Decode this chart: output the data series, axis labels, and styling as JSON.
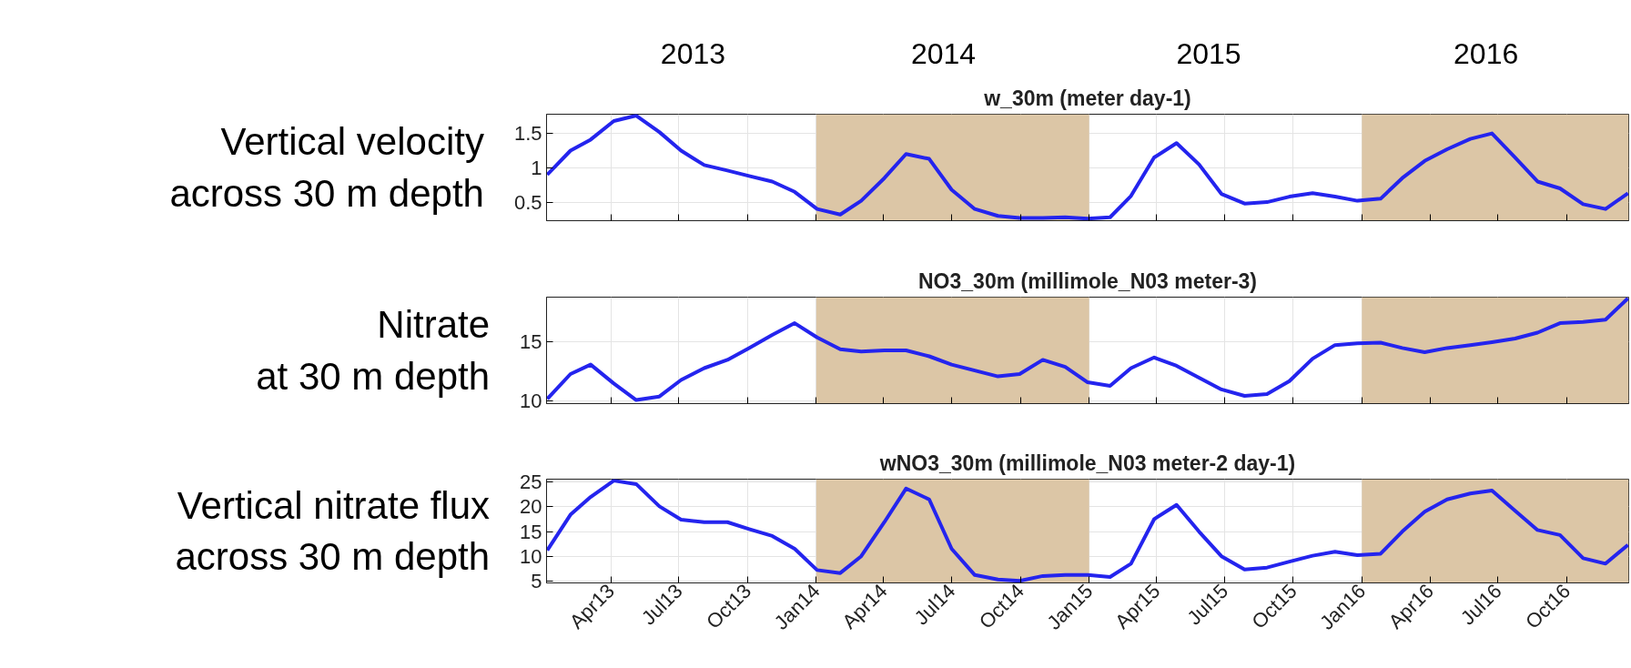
{
  "chart_data": [
    {
      "type": "line",
      "title": "w_30m (meter day-1)",
      "ylabel": "Vertical velocity\nacross 30 m depth",
      "x": [
        "2013-01-06",
        "2013-02-06",
        "2013-03-05",
        "2013-04-05",
        "2013-05-05",
        "2013-06-05",
        "2013-07-04",
        "2013-08-04",
        "2013-09-04",
        "2013-10-03",
        "2013-11-03",
        "2013-12-03",
        "2014-01-02",
        "2014-02-02",
        "2014-03-02",
        "2014-04-02",
        "2014-05-01",
        "2014-06-01",
        "2014-07-01",
        "2014-08-01",
        "2014-09-01",
        "2014-09-30",
        "2014-10-31",
        "2014-11-30",
        "2014-12-30",
        "2015-01-29",
        "2015-02-26",
        "2015-03-29",
        "2015-04-28",
        "2015-05-28",
        "2015-06-27",
        "2015-07-28",
        "2015-08-27",
        "2015-09-26",
        "2015-10-27",
        "2015-11-26",
        "2015-12-26",
        "2016-01-26",
        "2016-02-24",
        "2016-03-25",
        "2016-04-24",
        "2016-05-25",
        "2016-06-23",
        "2016-07-24",
        "2016-08-23",
        "2016-09-22",
        "2016-10-23",
        "2016-11-22",
        "2016-12-22"
      ],
      "series": [
        {
          "color": "#2424ee",
          "values": [
            0.9,
            1.25,
            1.41,
            1.68,
            1.76,
            1.52,
            1.25,
            1.04,
            0.96,
            0.88,
            0.8,
            0.65,
            0.4,
            0.32,
            0.52,
            0.85,
            1.2,
            1.13,
            0.68,
            0.4,
            0.3,
            0.27,
            0.27,
            0.28,
            0.26,
            0.28,
            0.59,
            1.15,
            1.36,
            1.05,
            0.62,
            0.48,
            0.5,
            0.58,
            0.63,
            0.58,
            0.52,
            0.55,
            0.85,
            1.1,
            1.27,
            1.42,
            1.5,
            1.15,
            0.8,
            0.7,
            0.47,
            0.4,
            0.63
          ]
        }
      ],
      "xlim": [
        "2013-01-05",
        "2016-12-23"
      ],
      "ylim": [
        0.23,
        1.78
      ],
      "xticks": [
        {
          "value": "2013-04-01",
          "label": null
        },
        {
          "value": "2013-07-01",
          "label": null
        },
        {
          "value": "2013-10-01",
          "label": null
        },
        {
          "value": "2014-01-01",
          "label": null
        },
        {
          "value": "2014-04-01",
          "label": null
        },
        {
          "value": "2014-07-01",
          "label": null
        },
        {
          "value": "2014-10-01",
          "label": null
        },
        {
          "value": "2015-01-01",
          "label": null
        },
        {
          "value": "2015-04-01",
          "label": null
        },
        {
          "value": "2015-07-01",
          "label": null
        },
        {
          "value": "2015-10-01",
          "label": null
        },
        {
          "value": "2016-01-01",
          "label": null
        },
        {
          "value": "2016-04-01",
          "label": null
        },
        {
          "value": "2016-07-01",
          "label": null
        },
        {
          "value": "2016-10-01",
          "label": null
        }
      ],
      "yticks": [
        0.5,
        1,
        1.5
      ],
      "x2lim": [
        "2013-01-05",
        "2016-12-23"
      ],
      "x2ticks": [
        {
          "value": "2013-07-20",
          "label": "2013"
        },
        {
          "value": "2014-06-20",
          "label": "2014"
        },
        {
          "value": "2015-06-10",
          "label": "2015"
        },
        {
          "value": "2016-06-15",
          "label": "2016"
        }
      ],
      "bands": [
        {
          "axis": "x",
          "from": "2014-01-01",
          "to": "2015-01-01",
          "color": "#dcc6a6"
        },
        {
          "axis": "x",
          "from": "2016-01-01",
          "to": "2016-12-23",
          "color": "#dcc6a6"
        }
      ],
      "grid": true,
      "tick_labels": "y",
      "line_style": "solid"
    },
    {
      "type": "line",
      "title": "NO3_30m (millimole_N03 meter-3)",
      "ylabel": "Nitrate\nat 30 m depth",
      "x": [
        "2013-01-06",
        "2013-02-06",
        "2013-03-05",
        "2013-04-05",
        "2013-05-05",
        "2013-06-05",
        "2013-07-04",
        "2013-08-04",
        "2013-09-04",
        "2013-10-03",
        "2013-11-03",
        "2013-12-03",
        "2014-01-02",
        "2014-02-02",
        "2014-03-02",
        "2014-04-02",
        "2014-05-01",
        "2014-06-01",
        "2014-07-01",
        "2014-08-01",
        "2014-09-01",
        "2014-09-30",
        "2014-10-31",
        "2014-11-30",
        "2014-12-30",
        "2015-01-29",
        "2015-02-26",
        "2015-03-29",
        "2015-04-28",
        "2015-05-28",
        "2015-06-27",
        "2015-07-28",
        "2015-08-27",
        "2015-09-26",
        "2015-10-27",
        "2015-11-26",
        "2015-12-26",
        "2016-01-26",
        "2016-02-24",
        "2016-03-25",
        "2016-04-24",
        "2016-05-25",
        "2016-06-23",
        "2016-07-24",
        "2016-08-23",
        "2016-09-22",
        "2016-10-23",
        "2016-11-22",
        "2016-12-22"
      ],
      "series": [
        {
          "color": "#2424ee",
          "values": [
            10.2,
            12.3,
            13.1,
            11.5,
            10.1,
            10.4,
            11.8,
            12.8,
            13.5,
            14.5,
            15.6,
            16.6,
            15.4,
            14.4,
            14.2,
            14.3,
            14.3,
            13.8,
            13.1,
            12.6,
            12.1,
            12.3,
            13.5,
            12.9,
            11.6,
            11.3,
            12.8,
            13.7,
            13.0,
            12.0,
            11.0,
            10.45,
            10.6,
            11.7,
            13.6,
            14.75,
            14.9,
            14.95,
            14.5,
            14.15,
            14.5,
            14.75,
            15.0,
            15.3,
            15.8,
            16.6,
            16.7,
            16.9,
            18.7
          ]
        }
      ],
      "xlim": [
        "2013-01-05",
        "2016-12-23"
      ],
      "ylim": [
        9.8,
        18.8
      ],
      "xticks": [
        {
          "value": "2013-04-01",
          "label": null
        },
        {
          "value": "2013-07-01",
          "label": null
        },
        {
          "value": "2013-10-01",
          "label": null
        },
        {
          "value": "2014-01-01",
          "label": null
        },
        {
          "value": "2014-04-01",
          "label": null
        },
        {
          "value": "2014-07-01",
          "label": null
        },
        {
          "value": "2014-10-01",
          "label": null
        },
        {
          "value": "2015-01-01",
          "label": null
        },
        {
          "value": "2015-04-01",
          "label": null
        },
        {
          "value": "2015-07-01",
          "label": null
        },
        {
          "value": "2015-10-01",
          "label": null
        },
        {
          "value": "2016-01-01",
          "label": null
        },
        {
          "value": "2016-04-01",
          "label": null
        },
        {
          "value": "2016-07-01",
          "label": null
        },
        {
          "value": "2016-10-01",
          "label": null
        }
      ],
      "yticks": [
        10,
        15
      ],
      "bands": [
        {
          "axis": "x",
          "from": "2014-01-01",
          "to": "2015-01-01",
          "color": "#dcc6a6"
        },
        {
          "axis": "x",
          "from": "2016-01-01",
          "to": "2016-12-23",
          "color": "#dcc6a6"
        }
      ],
      "grid": true,
      "tick_labels": "y",
      "line_style": "solid"
    },
    {
      "type": "line",
      "title": "wNO3_30m (millimole_N03 meter-2 day-1)",
      "ylabel": "Vertical nitrate flux\nacross 30 m depth",
      "x": [
        "2013-01-06",
        "2013-02-06",
        "2013-03-05",
        "2013-04-05",
        "2013-05-05",
        "2013-06-05",
        "2013-07-04",
        "2013-08-04",
        "2013-09-04",
        "2013-10-03",
        "2013-11-03",
        "2013-12-03",
        "2014-01-02",
        "2014-02-02",
        "2014-03-02",
        "2014-04-02",
        "2014-05-01",
        "2014-06-01",
        "2014-07-01",
        "2014-08-01",
        "2014-09-01",
        "2014-09-30",
        "2014-10-31",
        "2014-11-30",
        "2014-12-30",
        "2015-01-29",
        "2015-02-26",
        "2015-03-29",
        "2015-04-28",
        "2015-05-28",
        "2015-06-27",
        "2015-07-28",
        "2015-08-27",
        "2015-09-26",
        "2015-10-27",
        "2015-11-26",
        "2015-12-26",
        "2016-01-26",
        "2016-02-24",
        "2016-03-25",
        "2016-04-24",
        "2016-05-25",
        "2016-06-23",
        "2016-07-24",
        "2016-08-23",
        "2016-09-22",
        "2016-10-23",
        "2016-11-22",
        "2016-12-22"
      ],
      "series": [
        {
          "color": "#2424ee",
          "values": [
            11.2,
            18.4,
            22.0,
            25.3,
            24.6,
            20.1,
            17.4,
            16.9,
            16.9,
            15.5,
            14.1,
            11.5,
            7.2,
            6.6,
            10.0,
            16.9,
            23.7,
            21.5,
            11.5,
            6.2,
            5.3,
            5.0,
            6.0,
            6.2,
            6.2,
            5.8,
            8.5,
            17.5,
            20.4,
            15.0,
            10.0,
            7.3,
            7.7,
            8.9,
            10.1,
            10.9,
            10.2,
            10.5,
            15.0,
            19.0,
            21.5,
            22.7,
            23.3,
            19.2,
            15.3,
            14.3,
            9.6,
            8.5,
            12.3
          ]
        }
      ],
      "xlim": [
        "2013-01-05",
        "2016-12-23"
      ],
      "ylim": [
        4.6,
        25.6
      ],
      "xticks": [
        {
          "value": "2013-04-01",
          "label": "Apr13"
        },
        {
          "value": "2013-07-01",
          "label": "Jul13"
        },
        {
          "value": "2013-10-01",
          "label": "Oct13"
        },
        {
          "value": "2014-01-01",
          "label": "Jan14"
        },
        {
          "value": "2014-04-01",
          "label": "Apr14"
        },
        {
          "value": "2014-07-01",
          "label": "Jul14"
        },
        {
          "value": "2014-10-01",
          "label": "Oct14"
        },
        {
          "value": "2015-01-01",
          "label": "Jan15"
        },
        {
          "value": "2015-04-01",
          "label": "Apr15"
        },
        {
          "value": "2015-07-01",
          "label": "Jul15"
        },
        {
          "value": "2015-10-01",
          "label": "Oct15"
        },
        {
          "value": "2016-01-01",
          "label": "Jan16"
        },
        {
          "value": "2016-04-01",
          "label": "Apr16"
        },
        {
          "value": "2016-07-01",
          "label": "Jul16"
        },
        {
          "value": "2016-10-01",
          "label": "Oct16"
        }
      ],
      "yticks": [
        5,
        10,
        15,
        20,
        25
      ],
      "bands": [
        {
          "axis": "x",
          "from": "2014-01-01",
          "to": "2015-01-01",
          "color": "#dcc6a6"
        },
        {
          "axis": "x",
          "from": "2016-01-01",
          "to": "2016-12-23",
          "color": "#dcc6a6"
        }
      ],
      "grid": true,
      "line_style": "solid"
    }
  ]
}
